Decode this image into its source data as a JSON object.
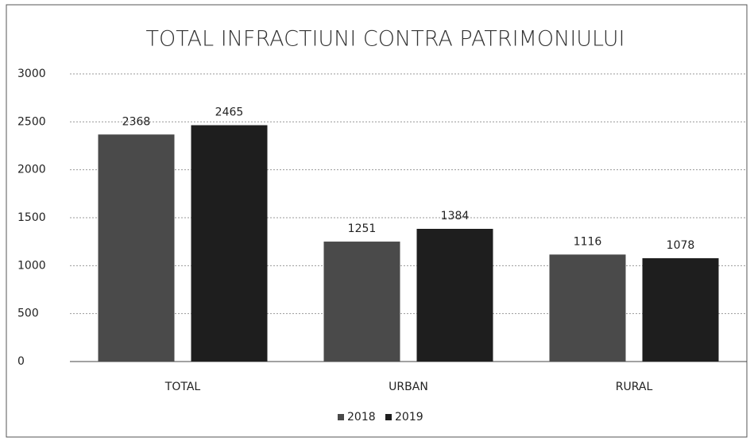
{
  "chart_data": {
    "type": "bar",
    "title": "TOTAL INFRACTIUNI CONTRA PATRIMONIULUI",
    "categories": [
      "TOTAL",
      "URBAN",
      "RURAL"
    ],
    "series": [
      {
        "name": "2018",
        "color": "#4a4a4a",
        "values": [
          2368,
          1251,
          1116
        ]
      },
      {
        "name": "2019",
        "color": "#1e1e1e",
        "values": [
          2465,
          1384,
          1078
        ]
      }
    ],
    "ylim": [
      0,
      3000
    ],
    "yticks": [
      0,
      500,
      1000,
      1500,
      2000,
      2500,
      3000
    ],
    "grid": true,
    "legend": "bottom"
  }
}
